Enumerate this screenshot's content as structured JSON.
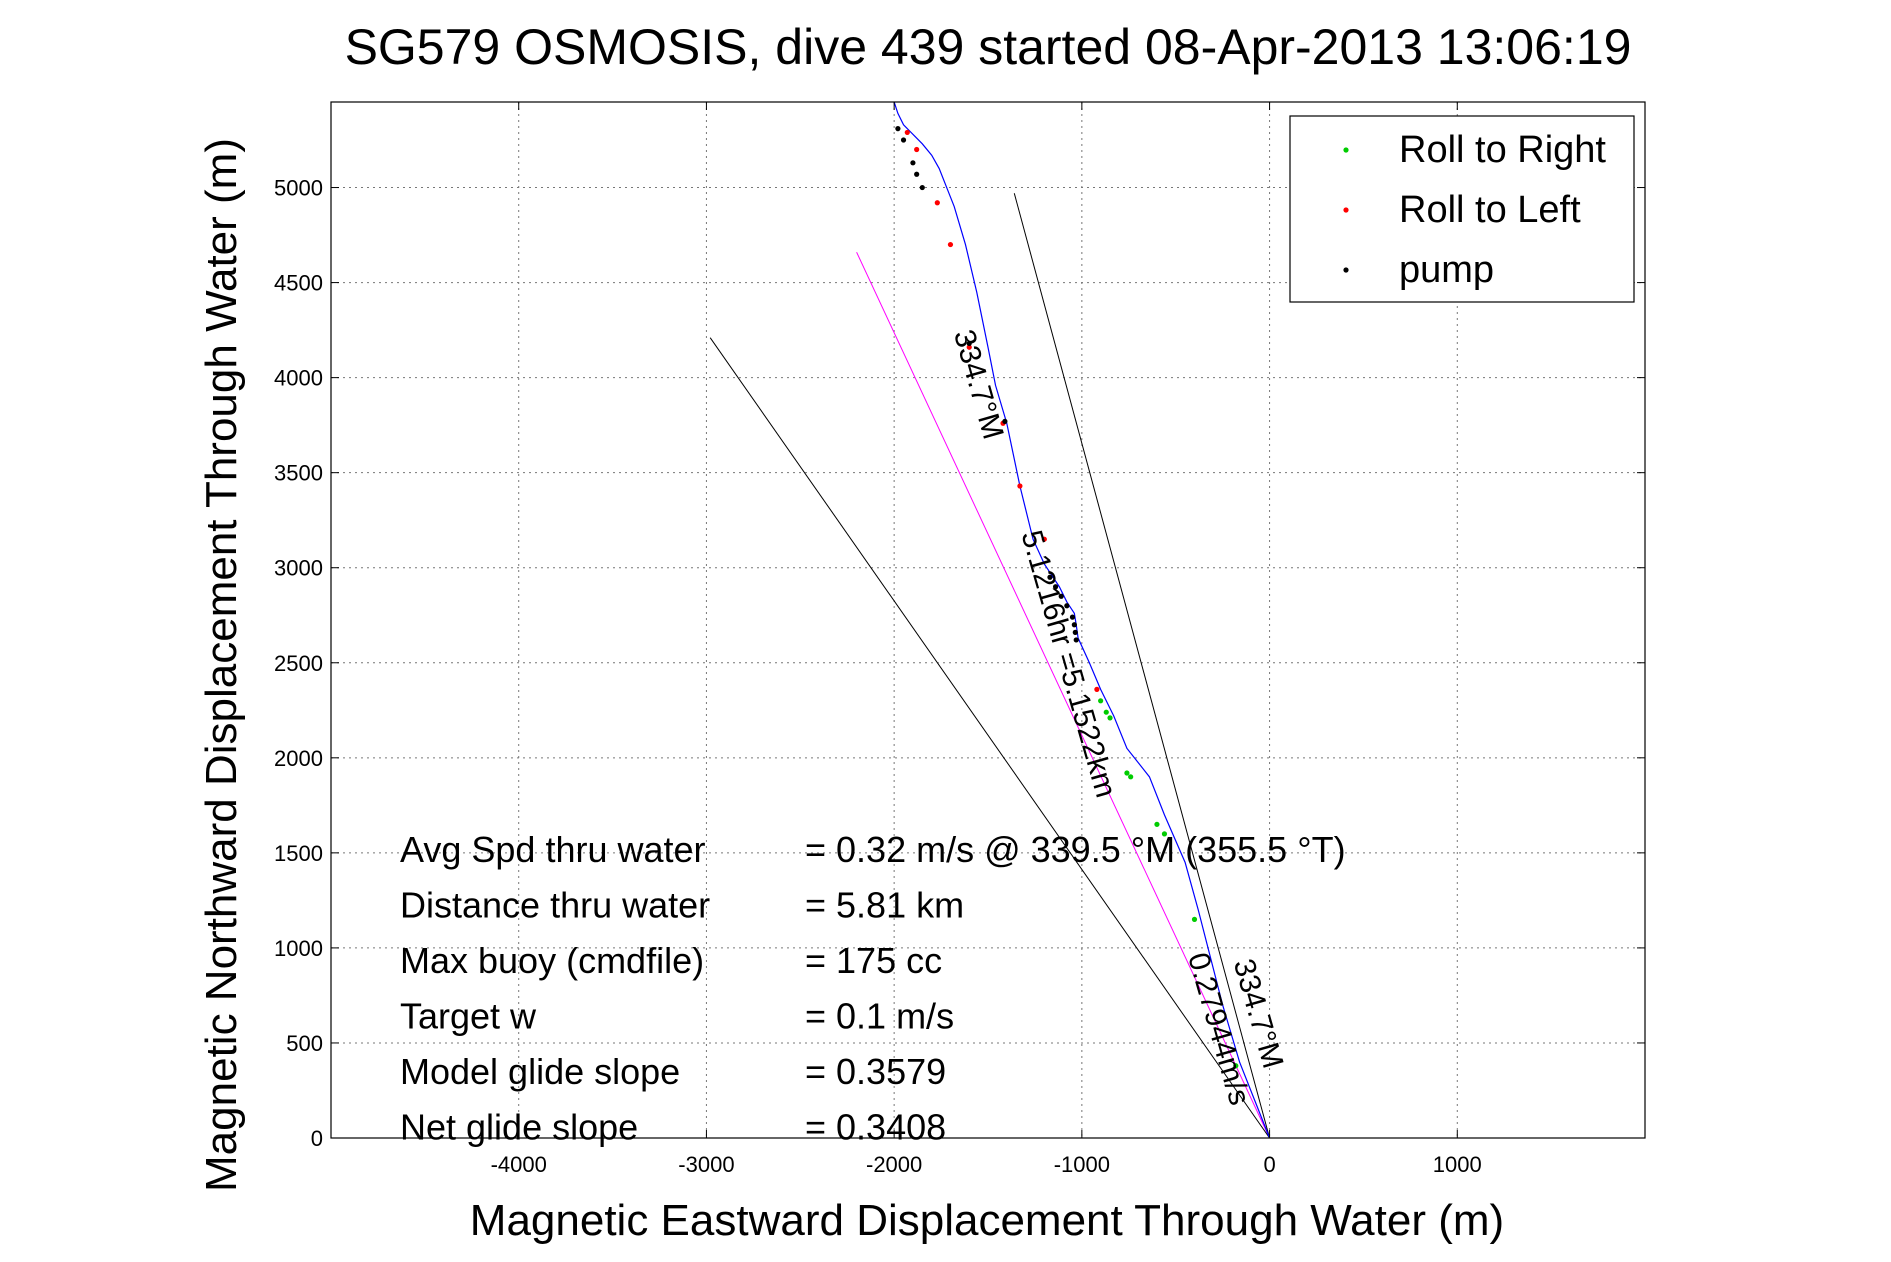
{
  "chart_data": {
    "type": "scatter",
    "title": "SG579 OSMOSIS, dive 439 started 08-Apr-2013 13:06:19",
    "xlabel": "Magnetic Eastward Displacement Through Water (m)",
    "ylabel": "Magnetic Northward Displacement Through Water (m)",
    "xlim": [
      -5000,
      2000
    ],
    "ylim": [
      0,
      5450
    ],
    "xticks": [
      -4000,
      -3000,
      -2000,
      -1000,
      0,
      1000
    ],
    "xtick_labels": [
      "-4000",
      "-3000",
      "-2000",
      "-1000",
      "0",
      "1000"
    ],
    "yticks": [
      0,
      500,
      1000,
      1500,
      2000,
      2500,
      3000,
      3500,
      4000,
      4500,
      5000
    ],
    "ytick_labels": [
      "0",
      "500",
      "1000",
      "1500",
      "2000",
      "2500",
      "3000",
      "3500",
      "4000",
      "4500",
      "5000"
    ],
    "grid": true,
    "legend_position": "top-right",
    "legend": [
      {
        "label": "Roll to Right",
        "color": "#00cc00"
      },
      {
        "label": "Roll to Left",
        "color": "#ff0000"
      },
      {
        "label": "pump",
        "color": "#000000"
      }
    ],
    "series": [
      {
        "name": "",
        "type": "line",
        "color": "#0000ff",
        "x": [
          0,
          -80,
          -160,
          -250,
          -380,
          -450,
          -560,
          -640,
          -760,
          -830,
          -900,
          -960,
          -1020,
          -1030,
          -1040,
          -1080,
          -1120,
          -1200,
          -1260,
          -1330,
          -1400,
          -1460,
          -1500,
          -1560,
          -1620,
          -1680,
          -1720,
          -1760,
          -1800,
          -1850,
          -1890,
          -1920,
          -1950,
          -1980,
          -2000
        ],
        "y": [
          0,
          200,
          400,
          700,
          1200,
          1450,
          1700,
          1900,
          2050,
          2220,
          2360,
          2500,
          2630,
          2700,
          2760,
          2820,
          2900,
          3020,
          3150,
          3430,
          3760,
          3960,
          4160,
          4450,
          4700,
          4900,
          5000,
          5100,
          5170,
          5230,
          5270,
          5300,
          5330,
          5390,
          5450
        ]
      },
      {
        "name": "Roll to Right",
        "type": "scatter",
        "color": "#00cc00",
        "x": [
          -180,
          -400,
          -560,
          -600,
          -740,
          -760,
          -850,
          -870,
          -900
        ],
        "y": [
          380,
          1150,
          1600,
          1650,
          1900,
          1920,
          2210,
          2240,
          2300
        ]
      },
      {
        "name": "Roll to Left",
        "type": "scatter",
        "color": "#ff0000",
        "x": [
          -920,
          -1200,
          -1330,
          -1420,
          -1600,
          -1700,
          -1770,
          -1880,
          -1930
        ],
        "y": [
          2360,
          3150,
          3430,
          3760,
          4160,
          4700,
          4920,
          5200,
          5290
        ]
      },
      {
        "name": "pump",
        "type": "scatter",
        "color": "#000000",
        "x": [
          -1030,
          -1035,
          -1040,
          -1050,
          -1080,
          -1110,
          -1140,
          -1170,
          -1410,
          -1600,
          -1850,
          -1880,
          -1900,
          -1950,
          -1980
        ],
        "y": [
          2620,
          2660,
          2700,
          2740,
          2800,
          2850,
          2900,
          2950,
          3770,
          4180,
          5000,
          5070,
          5130,
          5250,
          5310
        ]
      }
    ],
    "reference_lines": [
      {
        "x": [
          0,
          -2200
        ],
        "y": [
          0,
          4660
        ],
        "color": "#ff00ff"
      },
      {
        "x": [
          0,
          -2980
        ],
        "y": [
          0,
          4210
        ],
        "color": "#000000"
      },
      {
        "x": [
          0,
          -1360
        ],
        "y": [
          0,
          4970
        ],
        "color": "#000000"
      }
    ],
    "line_labels": [
      {
        "text": "334.7°M",
        "x": -1600,
        "y": 3950,
        "angle": 74
      },
      {
        "text": "5.1216hr =5.1522km",
        "x": -1120,
        "y": 2480,
        "angle": 74
      },
      {
        "text": "0.27944m/s",
        "x": -320,
        "y": 560,
        "angle": 74
      },
      {
        "text": "334.7°M",
        "x": -110,
        "y": 640,
        "angle": 74
      }
    ],
    "annotations": {
      "labels": [
        "Avg Spd thru water",
        "Distance thru water",
        "Max buoy (cmdfile)",
        "Target w",
        "Model glide slope",
        "Net glide slope"
      ],
      "values": [
        "=  0.32 m/s @ 339.5 °M (355.5 °T)",
        "=  5.81 km",
        "= 175 cc",
        "= 0.1 m/s",
        "= 0.3579",
        "= 0.3408"
      ]
    }
  }
}
